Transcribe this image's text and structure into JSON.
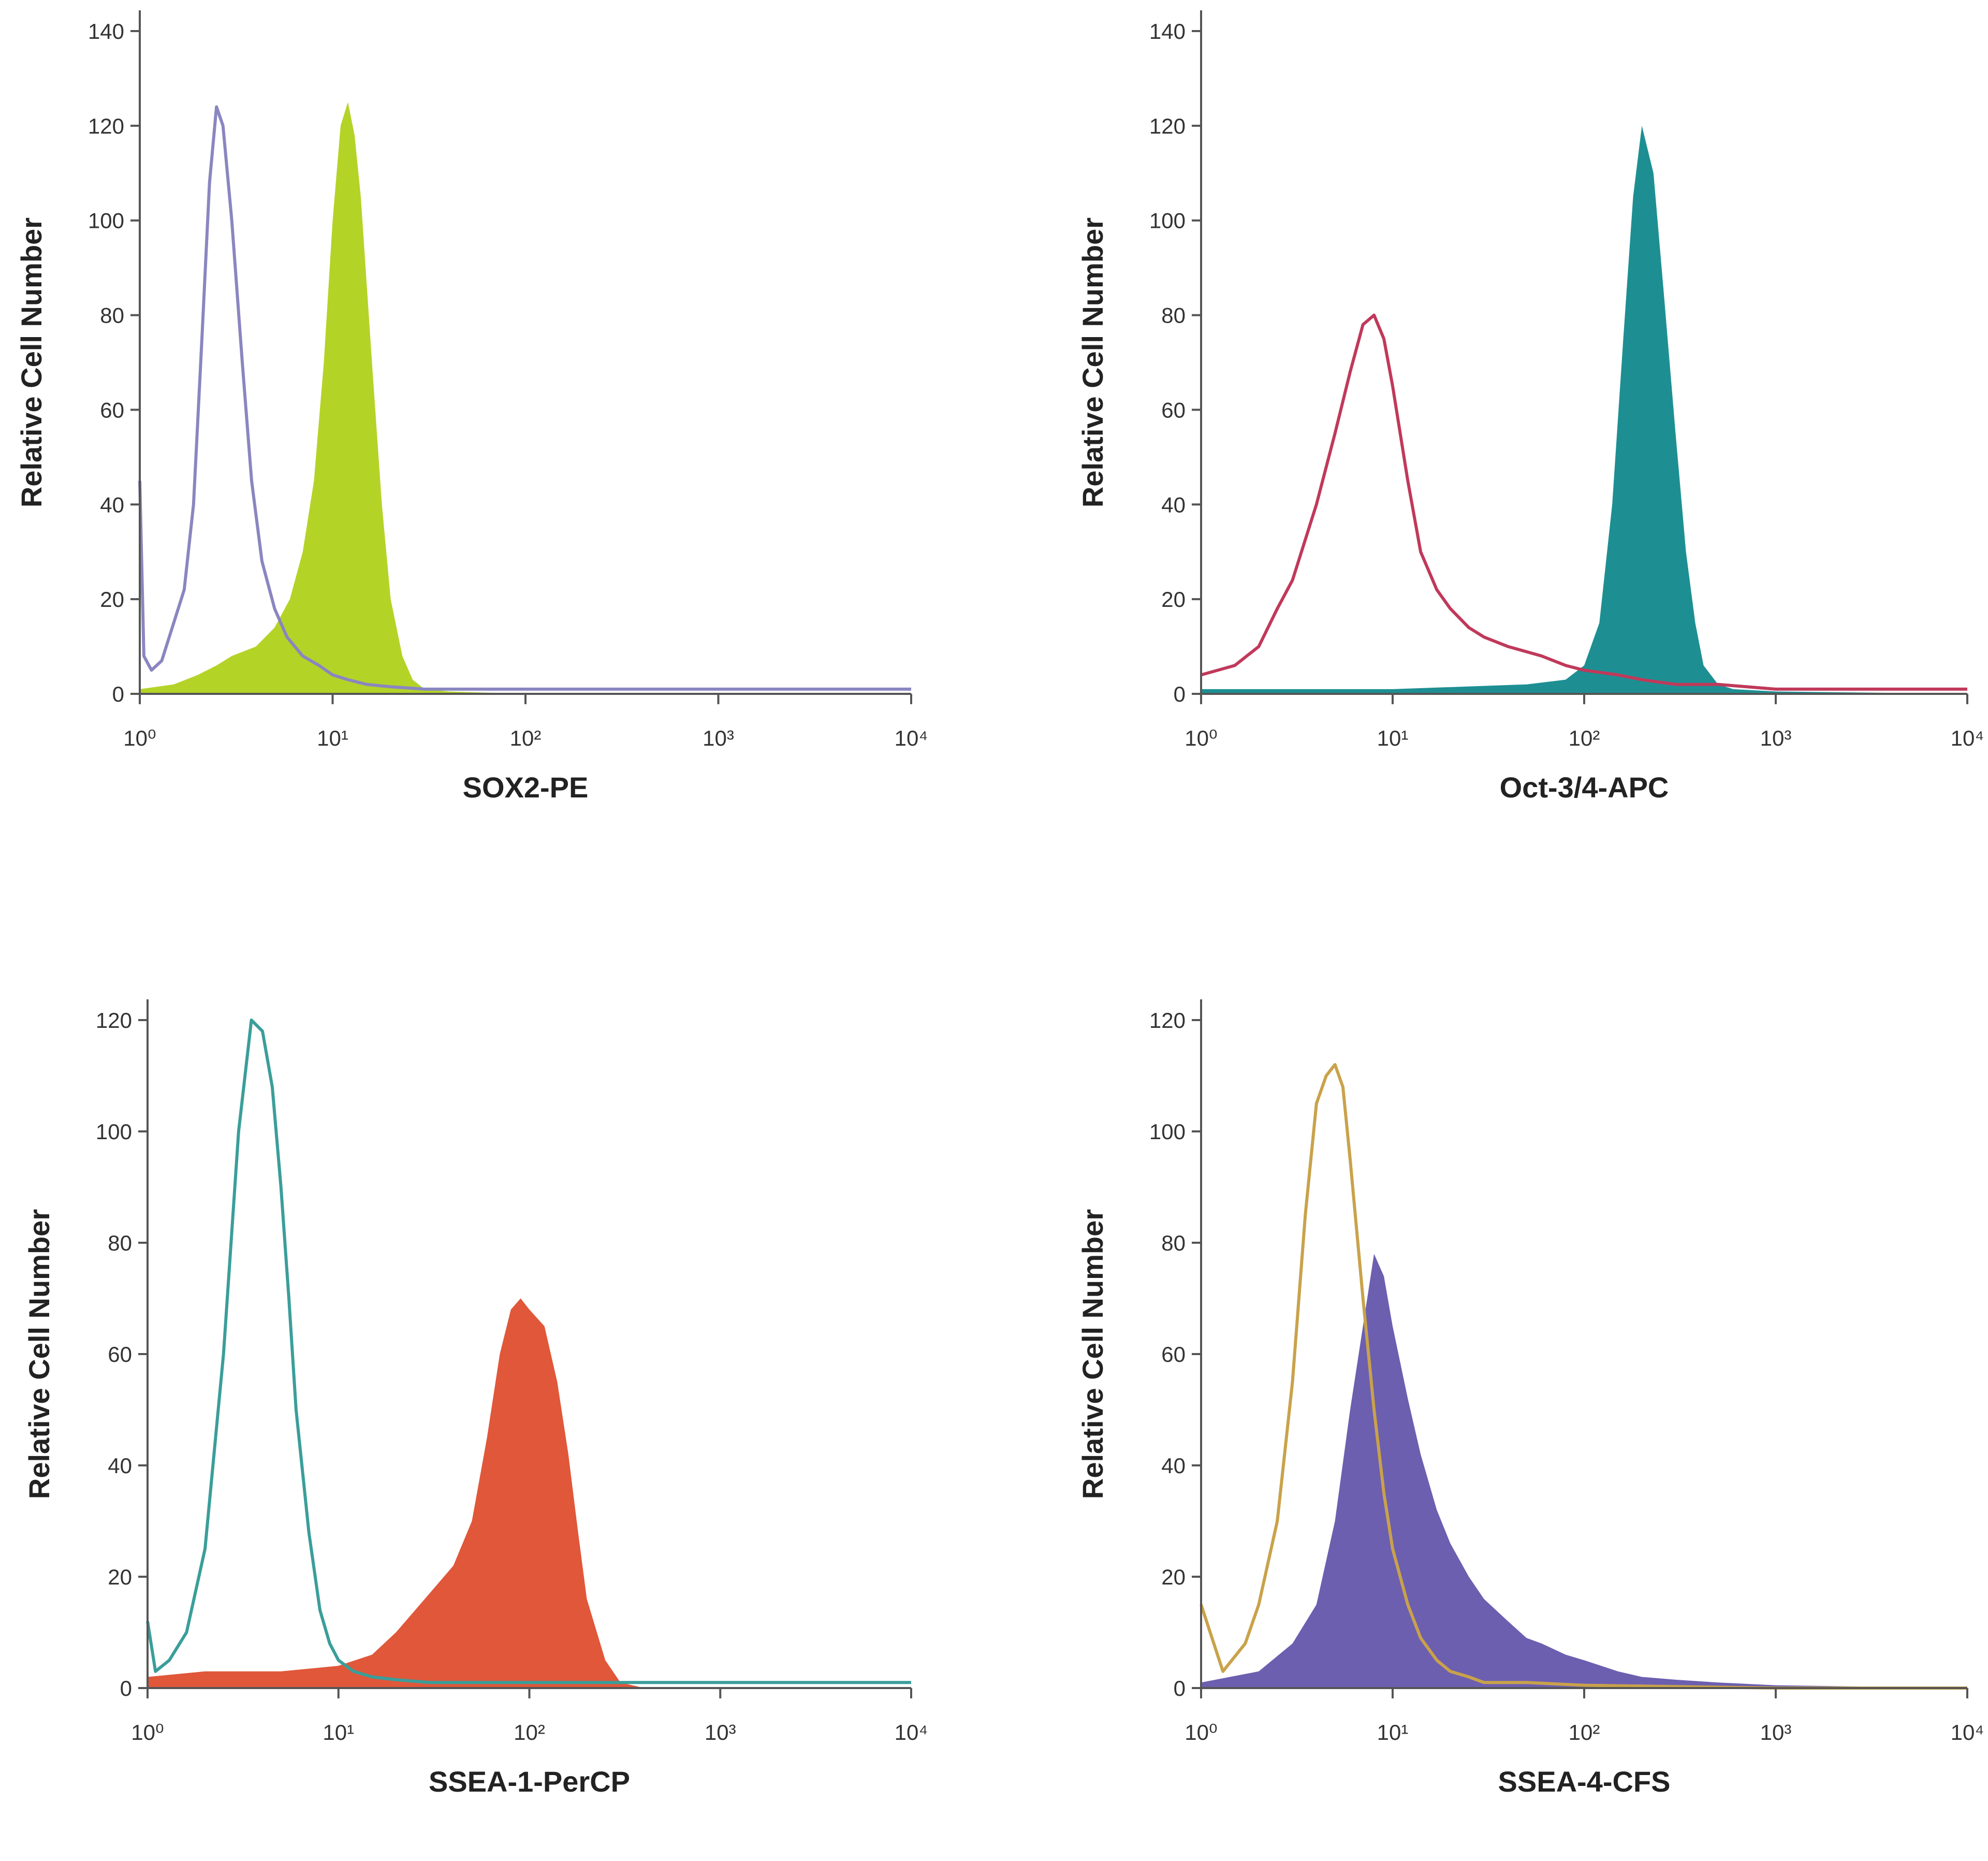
{
  "chart_data": [
    {
      "type": "area",
      "xlabel": "SOX2-PE",
      "ylabel": "Relative Cell Number",
      "xscale": "log",
      "xlim": [
        1,
        10000
      ],
      "ylim": [
        0,
        140
      ],
      "yticks": [
        "0",
        "20",
        "40",
        "60",
        "80",
        "100",
        "120",
        "140"
      ],
      "xticks": [
        "10⁰",
        "10¹",
        "10²",
        "10³",
        "10⁴"
      ],
      "series": [
        {
          "style": "outline",
          "color": "#8a86c0",
          "x": [
            1,
            1.05,
            1.15,
            1.3,
            1.5,
            1.7,
            1.9,
            2.1,
            2.3,
            2.5,
            2.7,
            3.0,
            3.4,
            3.8,
            4.3,
            5,
            5.8,
            7,
            8.5,
            10,
            12,
            15,
            20,
            30,
            50,
            100,
            200,
            500,
            1000,
            3000,
            10000
          ],
          "y": [
            45,
            8,
            5,
            7,
            15,
            22,
            40,
            75,
            108,
            124,
            120,
            100,
            70,
            45,
            28,
            18,
            12,
            8,
            6,
            4,
            3,
            2,
            1.5,
            1,
            1,
            1,
            1,
            1,
            1,
            1,
            1
          ]
        },
        {
          "style": "filled",
          "color": "#b4d327",
          "x": [
            1,
            1.5,
            2,
            2.5,
            3,
            4,
            5,
            6,
            7,
            8,
            9,
            10,
            11,
            12,
            13,
            14,
            16,
            18,
            20,
            23,
            26,
            30,
            40,
            100,
            1000,
            10000
          ],
          "y": [
            1,
            2,
            4,
            6,
            8,
            10,
            14,
            20,
            30,
            45,
            70,
            100,
            120,
            125,
            118,
            105,
            70,
            40,
            20,
            8,
            3,
            1,
            0.5,
            0,
            0,
            0
          ]
        }
      ]
    },
    {
      "type": "area",
      "xlabel": "Oct-3/4-APC",
      "ylabel": "Relative Cell Number",
      "xscale": "log",
      "xlim": [
        1,
        10000
      ],
      "ylim": [
        0,
        140
      ],
      "yticks": [
        "0",
        "20",
        "40",
        "60",
        "80",
        "100",
        "120",
        "140"
      ],
      "xticks": [
        "10⁰",
        "10¹",
        "10²",
        "10³",
        "10⁴"
      ],
      "series": [
        {
          "style": "outline",
          "color": "#c0395a",
          "x": [
            1,
            1.5,
            2,
            2.5,
            3,
            4,
            5,
            6,
            7,
            8,
            9,
            10,
            12,
            14,
            17,
            20,
            25,
            30,
            40,
            60,
            80,
            100,
            150,
            200,
            300,
            500,
            1000,
            3000,
            10000
          ],
          "y": [
            4,
            6,
            10,
            18,
            24,
            40,
            55,
            68,
            78,
            80,
            75,
            65,
            45,
            30,
            22,
            18,
            14,
            12,
            10,
            8,
            6,
            5,
            4,
            3,
            2,
            2,
            1,
            1,
            1
          ]
        },
        {
          "style": "filled",
          "color": "#1d8f93",
          "x": [
            1,
            10,
            50,
            80,
            100,
            120,
            140,
            160,
            180,
            200,
            230,
            260,
            300,
            340,
            380,
            420,
            500,
            600,
            1000,
            10000
          ],
          "y": [
            1,
            1,
            2,
            3,
            6,
            15,
            40,
            75,
            105,
            120,
            110,
            85,
            55,
            30,
            15,
            6,
            2,
            1,
            0.5,
            0
          ]
        }
      ]
    },
    {
      "type": "area",
      "xlabel": "SSEA-1-PerCP",
      "ylabel": "Relative Cell Number",
      "xscale": "log",
      "xlim": [
        1,
        10000
      ],
      "ylim": [
        0,
        120
      ],
      "yticks": [
        "0",
        "20",
        "40",
        "60",
        "80",
        "100",
        "120"
      ],
      "xticks": [
        "10⁰",
        "10¹",
        "10²",
        "10³",
        "10⁴"
      ],
      "series": [
        {
          "style": "outline",
          "color": "#3a9e9a",
          "x": [
            1,
            1.1,
            1.3,
            1.6,
            2,
            2.5,
            3,
            3.5,
            4,
            4.5,
            5,
            5.5,
            6,
            7,
            8,
            9,
            10,
            12,
            15,
            20,
            30,
            100,
            1000,
            10000
          ],
          "y": [
            12,
            3,
            5,
            10,
            25,
            60,
            100,
            120,
            118,
            108,
            90,
            70,
            50,
            28,
            14,
            8,
            5,
            3,
            2,
            1.5,
            1,
            1,
            1,
            1
          ]
        },
        {
          "style": "filled",
          "color": "#e0573a",
          "x": [
            1,
            2,
            5,
            10,
            15,
            20,
            30,
            40,
            50,
            60,
            70,
            80,
            90,
            100,
            120,
            140,
            160,
            180,
            200,
            250,
            300,
            400,
            1000,
            10000
          ],
          "y": [
            2,
            3,
            3,
            4,
            6,
            10,
            17,
            22,
            30,
            45,
            60,
            68,
            70,
            68,
            65,
            55,
            42,
            28,
            16,
            5,
            1,
            0,
            0,
            0
          ]
        }
      ]
    },
    {
      "type": "area",
      "xlabel": "SSEA-4-CFS",
      "ylabel": "Relative Cell Number",
      "xscale": "log",
      "xlim": [
        1,
        10000
      ],
      "ylim": [
        0,
        120
      ],
      "yticks": [
        "0",
        "20",
        "40",
        "60",
        "80",
        "100",
        "120"
      ],
      "xticks": [
        "10⁰",
        "10¹",
        "10²",
        "10³",
        "10⁴"
      ],
      "series": [
        {
          "style": "outline",
          "color": "#c9a24a",
          "x": [
            1,
            1.3,
            1.7,
            2,
            2.5,
            3,
            3.5,
            4,
            4.5,
            5,
            5.5,
            6,
            7,
            8,
            9,
            10,
            12,
            14,
            17,
            20,
            25,
            30,
            50,
            100,
            1000,
            10000
          ],
          "y": [
            15,
            3,
            8,
            15,
            30,
            55,
            85,
            105,
            110,
            112,
            108,
            95,
            70,
            50,
            35,
            25,
            15,
            9,
            5,
            3,
            2,
            1,
            1,
            0.5,
            0,
            0
          ]
        },
        {
          "style": "filled",
          "color": "#6c5fb0",
          "x": [
            1,
            2,
            3,
            4,
            5,
            6,
            7,
            8,
            9,
            10,
            12,
            14,
            17,
            20,
            25,
            30,
            40,
            50,
            60,
            80,
            100,
            150,
            200,
            300,
            500,
            1000,
            10000
          ],
          "y": [
            1,
            3,
            8,
            15,
            30,
            50,
            65,
            78,
            74,
            65,
            52,
            42,
            32,
            26,
            20,
            16,
            12,
            9,
            8,
            6,
            5,
            3,
            2,
            1.5,
            1,
            0.5,
            0
          ]
        }
      ]
    }
  ]
}
